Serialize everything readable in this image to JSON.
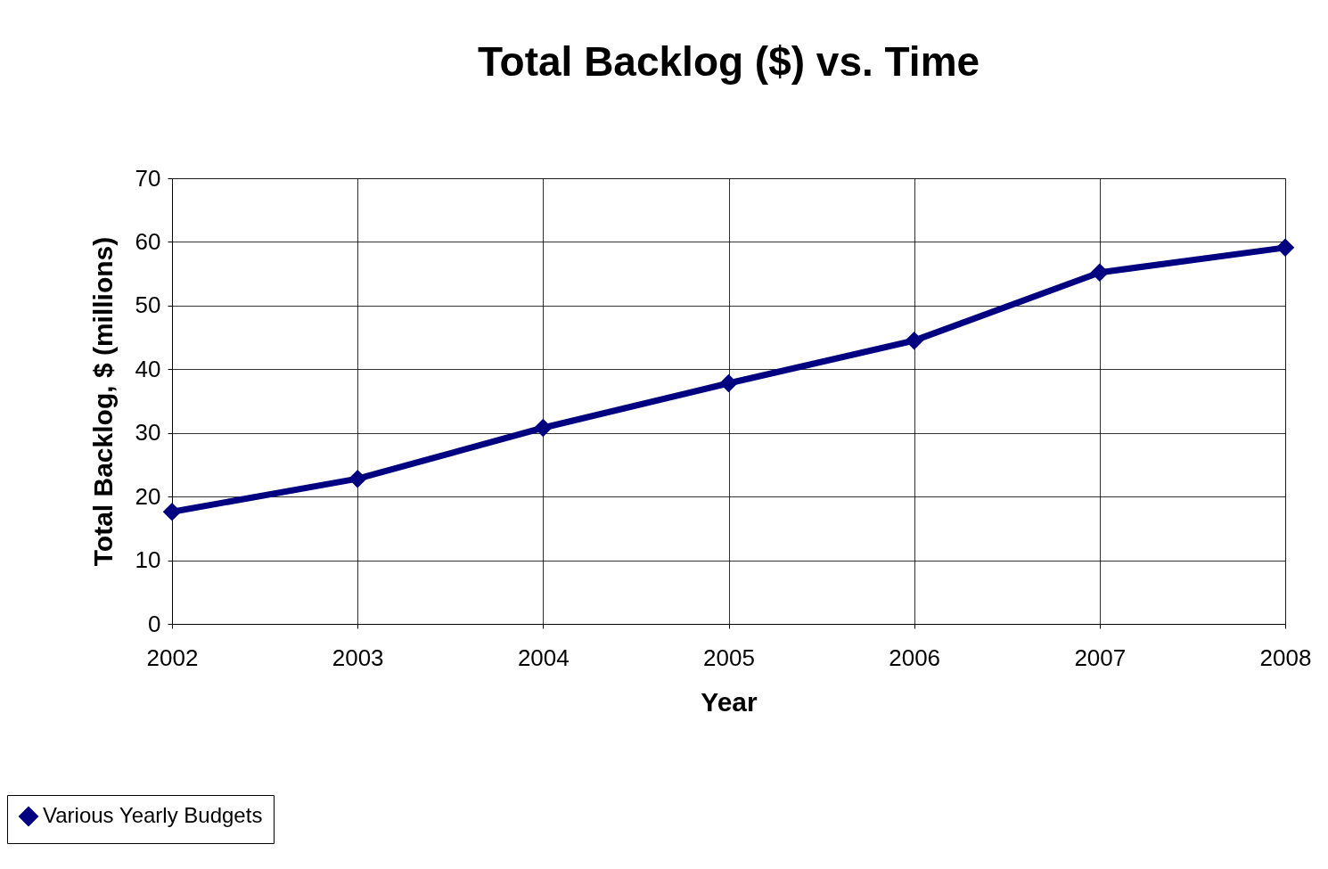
{
  "chart_data": {
    "type": "line",
    "title": "Total Backlog ($) vs. Time",
    "xlabel": "Year",
    "ylabel": "Total Backlog, $ (millions)",
    "x": [
      2002,
      2003,
      2004,
      2005,
      2006,
      2007,
      2008
    ],
    "series": [
      {
        "name": "Various Yearly Budgets",
        "color": "#000080",
        "values": [
          17.6,
          22.8,
          30.8,
          37.8,
          44.5,
          55.2,
          59.1
        ]
      }
    ],
    "xlim": [
      2002,
      2008
    ],
    "xticks": [
      2002,
      2003,
      2004,
      2005,
      2006,
      2007,
      2008
    ],
    "ylim": [
      0,
      70
    ],
    "yticks": [
      0,
      10,
      20,
      30,
      40,
      50,
      60,
      70
    ],
    "grid": true,
    "legend": "bottom left",
    "marker": "diamond",
    "line_style": "solid"
  }
}
